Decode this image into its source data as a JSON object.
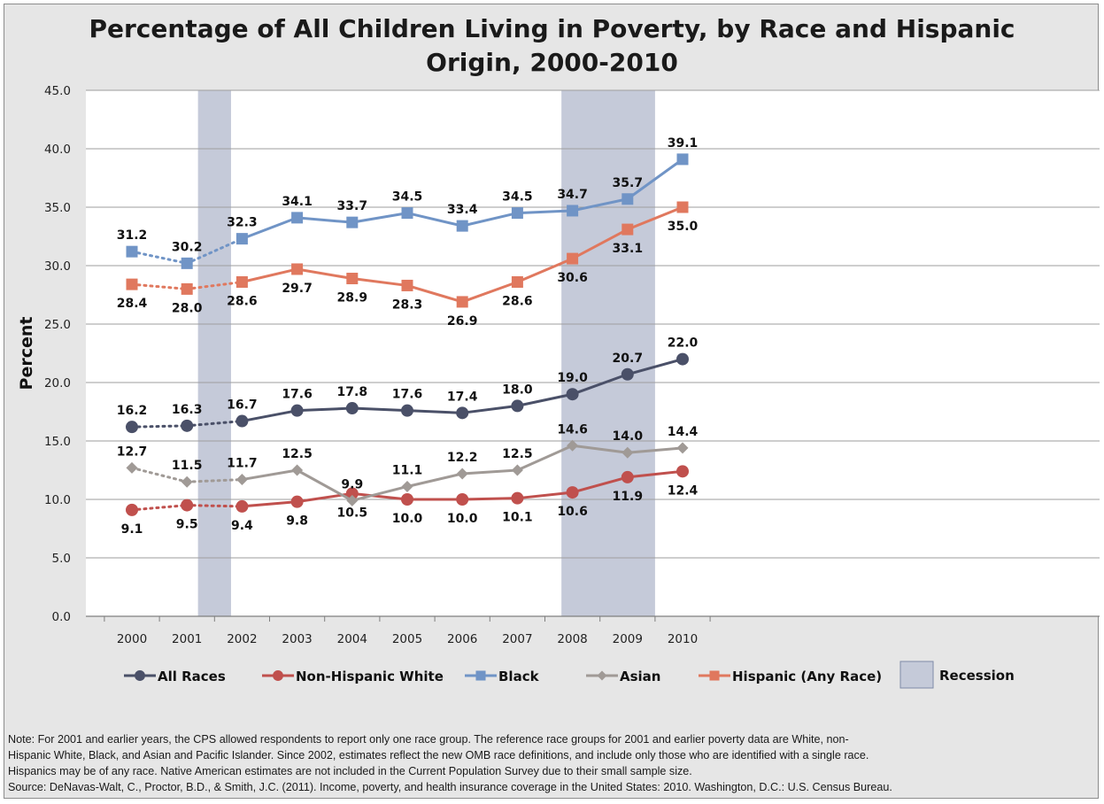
{
  "chart_data": {
    "type": "line",
    "title_line1": "Percentage of All Children Living in Poverty, by Race and Hispanic",
    "title_line2": "Origin, 2000-2010",
    "xlabel": "",
    "ylabel": "Percent",
    "ylim": [
      0,
      45
    ],
    "yticks": [
      "0.0",
      "5.0",
      "10.0",
      "15.0",
      "20.0",
      "25.0",
      "30.0",
      "35.0",
      "40.0",
      "45.0"
    ],
    "categories": [
      "2000",
      "2001",
      "2002",
      "2003",
      "2004",
      "2005",
      "2006",
      "2007",
      "2008",
      "2009",
      "2010"
    ],
    "grid": true,
    "legend_position": "bottom",
    "series": [
      {
        "name": "All Races",
        "color": "#4a5068",
        "marker": "circle",
        "values": [
          16.2,
          16.3,
          16.7,
          17.6,
          17.8,
          17.6,
          17.4,
          18.0,
          19.0,
          20.7,
          22.0
        ]
      },
      {
        "name": "Non-Hispanic White",
        "color": "#c0504d",
        "marker": "circle",
        "values": [
          9.1,
          9.5,
          9.4,
          9.8,
          10.5,
          10.0,
          10.0,
          10.1,
          10.6,
          11.9,
          12.4
        ]
      },
      {
        "name": "Black",
        "color": "#7094c6",
        "marker": "square",
        "values": [
          31.2,
          30.2,
          32.3,
          34.1,
          33.7,
          34.5,
          33.4,
          34.5,
          34.7,
          35.7,
          39.1
        ]
      },
      {
        "name": "Asian",
        "color": "#a09a96",
        "marker": "diamond",
        "values": [
          12.7,
          11.5,
          11.7,
          12.5,
          9.9,
          11.1,
          12.2,
          12.5,
          14.6,
          14.0,
          14.4
        ]
      },
      {
        "name": "Hispanic (Any Race)",
        "color": "#e0785e",
        "marker": "square",
        "values": [
          28.4,
          28.0,
          28.6,
          29.7,
          28.9,
          28.3,
          26.9,
          28.6,
          30.6,
          33.1,
          35.0
        ]
      }
    ],
    "dotted_segments_through": "2002",
    "recession": {
      "name": "Recession",
      "color": "#c5cad9",
      "periods": [
        [
          2001.2,
          2001.8
        ],
        [
          2007.8,
          2009.5
        ]
      ]
    }
  },
  "note": {
    "line1": "Note: For 2001 and earlier years, the CPS allowed respondents to report only one race group. The reference race groups for 2001 and earlier poverty data are White, non-",
    "line2": "Hispanic White, Black, and Asian and Pacific Islander. Since 2002, estimates reflect the new OMB race definitions, and include only those who are identified with a single race.",
    "line3": "Hispanics may be of any race. Native American estimates are not included in the Current Population Survey due to their small sample size.",
    "line4": "Source: DeNavas-Walt, C., Proctor, B.D., & Smith, J.C. (2011). Income, poverty, and health insurance coverage in the United States: 2010. Washington, D.C.: U.S. Census Bureau."
  }
}
